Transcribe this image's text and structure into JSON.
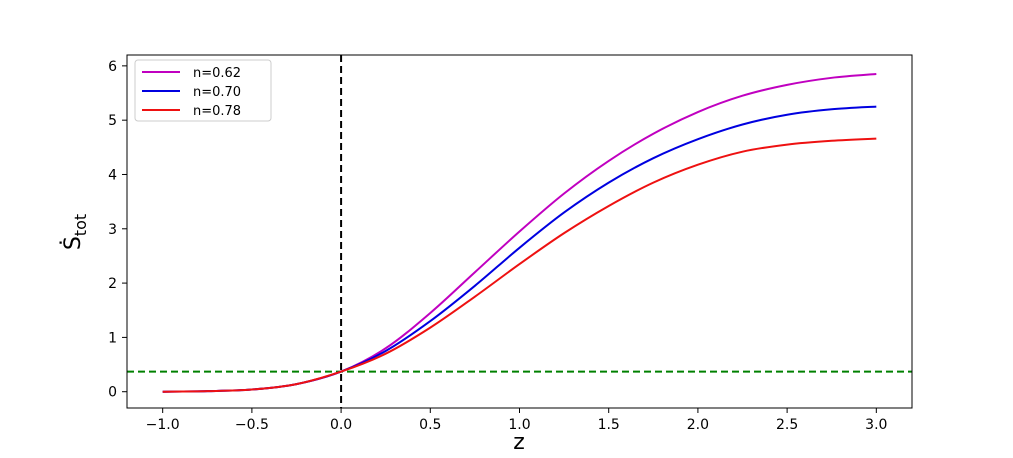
{
  "chart_data": {
    "type": "line",
    "title": "",
    "xlabel": "z",
    "ylabel": {
      "main": "Ṡ",
      "subscript": "tot"
    },
    "xlim": [
      -1.2,
      3.2
    ],
    "ylim": [
      -0.3,
      6.2
    ],
    "x_ticks": [
      -1.0,
      -0.5,
      0.0,
      0.5,
      1.0,
      1.5,
      2.0,
      2.5,
      3.0
    ],
    "x_tick_labels": [
      "−1.0",
      "−0.5",
      "0.0",
      "0.5",
      "1.0",
      "1.5",
      "2.0",
      "2.5",
      "3.0"
    ],
    "y_ticks": [
      0,
      1,
      2,
      3,
      4,
      5,
      6
    ],
    "y_tick_labels": [
      "0",
      "1",
      "2",
      "3",
      "4",
      "5",
      "6"
    ],
    "grid": false,
    "legend_position": "top-left",
    "x": [
      -1.0,
      -0.75,
      -0.5,
      -0.25,
      0.0,
      0.25,
      0.5,
      0.75,
      1.0,
      1.25,
      1.5,
      1.75,
      2.0,
      2.25,
      2.5,
      2.75,
      3.0
    ],
    "series": [
      {
        "name": "n=0.62",
        "color": "#c000c0",
        "values": [
          0.0,
          0.01,
          0.04,
          0.14,
          0.37,
          0.8,
          1.45,
          2.2,
          2.95,
          3.65,
          4.25,
          4.75,
          5.15,
          5.45,
          5.65,
          5.78,
          5.85
        ]
      },
      {
        "name": "n=0.70",
        "color": "#0000e0",
        "values": [
          0.0,
          0.01,
          0.04,
          0.14,
          0.37,
          0.75,
          1.3,
          1.95,
          2.65,
          3.3,
          3.85,
          4.3,
          4.65,
          4.92,
          5.1,
          5.2,
          5.25
        ]
      },
      {
        "name": "n=0.78",
        "color": "#ee1111",
        "values": [
          0.0,
          0.01,
          0.04,
          0.14,
          0.37,
          0.7,
          1.18,
          1.75,
          2.35,
          2.92,
          3.42,
          3.85,
          4.18,
          4.42,
          4.55,
          4.62,
          4.66
        ]
      }
    ],
    "reference_lines": [
      {
        "orientation": "vertical",
        "value": 0.0,
        "color": "#000000",
        "style": "dashed"
      },
      {
        "orientation": "horizontal",
        "value": 0.37,
        "color": "#008000",
        "style": "dashed"
      }
    ]
  }
}
